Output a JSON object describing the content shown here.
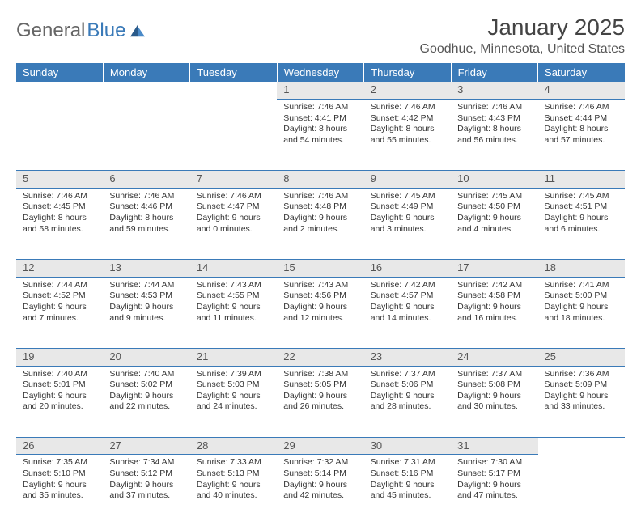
{
  "brand": {
    "part1": "General",
    "part2": "Blue"
  },
  "title": "January 2025",
  "location": "Goodhue, Minnesota, United States",
  "colors": {
    "header_bg": "#3a7ab8",
    "header_fg": "#ffffff",
    "daynum_bg": "#e8e8e8",
    "rule": "#3a7ab8",
    "text": "#333333"
  },
  "day_headers": [
    "Sunday",
    "Monday",
    "Tuesday",
    "Wednesday",
    "Thursday",
    "Friday",
    "Saturday"
  ],
  "weeks": [
    [
      null,
      null,
      null,
      {
        "n": "1",
        "sr": "7:46 AM",
        "ss": "4:41 PM",
        "dl": "8 hours and 54 minutes."
      },
      {
        "n": "2",
        "sr": "7:46 AM",
        "ss": "4:42 PM",
        "dl": "8 hours and 55 minutes."
      },
      {
        "n": "3",
        "sr": "7:46 AM",
        "ss": "4:43 PM",
        "dl": "8 hours and 56 minutes."
      },
      {
        "n": "4",
        "sr": "7:46 AM",
        "ss": "4:44 PM",
        "dl": "8 hours and 57 minutes."
      }
    ],
    [
      {
        "n": "5",
        "sr": "7:46 AM",
        "ss": "4:45 PM",
        "dl": "8 hours and 58 minutes."
      },
      {
        "n": "6",
        "sr": "7:46 AM",
        "ss": "4:46 PM",
        "dl": "8 hours and 59 minutes."
      },
      {
        "n": "7",
        "sr": "7:46 AM",
        "ss": "4:47 PM",
        "dl": "9 hours and 0 minutes."
      },
      {
        "n": "8",
        "sr": "7:46 AM",
        "ss": "4:48 PM",
        "dl": "9 hours and 2 minutes."
      },
      {
        "n": "9",
        "sr": "7:45 AM",
        "ss": "4:49 PM",
        "dl": "9 hours and 3 minutes."
      },
      {
        "n": "10",
        "sr": "7:45 AM",
        "ss": "4:50 PM",
        "dl": "9 hours and 4 minutes."
      },
      {
        "n": "11",
        "sr": "7:45 AM",
        "ss": "4:51 PM",
        "dl": "9 hours and 6 minutes."
      }
    ],
    [
      {
        "n": "12",
        "sr": "7:44 AM",
        "ss": "4:52 PM",
        "dl": "9 hours and 7 minutes."
      },
      {
        "n": "13",
        "sr": "7:44 AM",
        "ss": "4:53 PM",
        "dl": "9 hours and 9 minutes."
      },
      {
        "n": "14",
        "sr": "7:43 AM",
        "ss": "4:55 PM",
        "dl": "9 hours and 11 minutes."
      },
      {
        "n": "15",
        "sr": "7:43 AM",
        "ss": "4:56 PM",
        "dl": "9 hours and 12 minutes."
      },
      {
        "n": "16",
        "sr": "7:42 AM",
        "ss": "4:57 PM",
        "dl": "9 hours and 14 minutes."
      },
      {
        "n": "17",
        "sr": "7:42 AM",
        "ss": "4:58 PM",
        "dl": "9 hours and 16 minutes."
      },
      {
        "n": "18",
        "sr": "7:41 AM",
        "ss": "5:00 PM",
        "dl": "9 hours and 18 minutes."
      }
    ],
    [
      {
        "n": "19",
        "sr": "7:40 AM",
        "ss": "5:01 PM",
        "dl": "9 hours and 20 minutes."
      },
      {
        "n": "20",
        "sr": "7:40 AM",
        "ss": "5:02 PM",
        "dl": "9 hours and 22 minutes."
      },
      {
        "n": "21",
        "sr": "7:39 AM",
        "ss": "5:03 PM",
        "dl": "9 hours and 24 minutes."
      },
      {
        "n": "22",
        "sr": "7:38 AM",
        "ss": "5:05 PM",
        "dl": "9 hours and 26 minutes."
      },
      {
        "n": "23",
        "sr": "7:37 AM",
        "ss": "5:06 PM",
        "dl": "9 hours and 28 minutes."
      },
      {
        "n": "24",
        "sr": "7:37 AM",
        "ss": "5:08 PM",
        "dl": "9 hours and 30 minutes."
      },
      {
        "n": "25",
        "sr": "7:36 AM",
        "ss": "5:09 PM",
        "dl": "9 hours and 33 minutes."
      }
    ],
    [
      {
        "n": "26",
        "sr": "7:35 AM",
        "ss": "5:10 PM",
        "dl": "9 hours and 35 minutes."
      },
      {
        "n": "27",
        "sr": "7:34 AM",
        "ss": "5:12 PM",
        "dl": "9 hours and 37 minutes."
      },
      {
        "n": "28",
        "sr": "7:33 AM",
        "ss": "5:13 PM",
        "dl": "9 hours and 40 minutes."
      },
      {
        "n": "29",
        "sr": "7:32 AM",
        "ss": "5:14 PM",
        "dl": "9 hours and 42 minutes."
      },
      {
        "n": "30",
        "sr": "7:31 AM",
        "ss": "5:16 PM",
        "dl": "9 hours and 45 minutes."
      },
      {
        "n": "31",
        "sr": "7:30 AM",
        "ss": "5:17 PM",
        "dl": "9 hours and 47 minutes."
      },
      null
    ]
  ],
  "labels": {
    "sunrise": "Sunrise: ",
    "sunset": "Sunset: ",
    "daylight": "Daylight: "
  }
}
